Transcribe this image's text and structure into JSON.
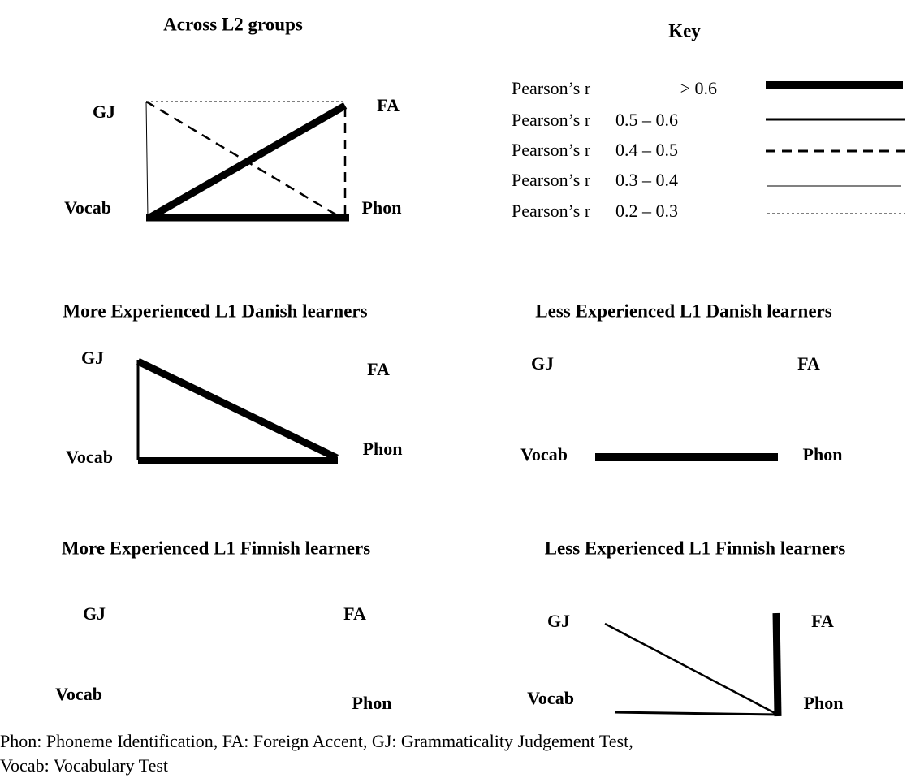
{
  "key": {
    "title": "Key",
    "entries": [
      {
        "label": "Pearson’s r",
        "range": "> 0.6"
      },
      {
        "label": "Pearson’s r",
        "range": "0.5 – 0.6"
      },
      {
        "label": "Pearson’s r",
        "range": "0.4 – 0.5"
      },
      {
        "label": "Pearson’s r",
        "range": "0.3 – 0.4"
      },
      {
        "label": "Pearson’s r",
        "range": "0.2 – 0.3"
      }
    ]
  },
  "panels": [
    {
      "title": "Across L2 groups",
      "nodes": [
        "GJ",
        "FA",
        "Vocab",
        "Phon"
      ]
    },
    {
      "title": "More Experienced L1 Danish learners",
      "nodes": [
        "GJ",
        "FA",
        "Vocab",
        "Phon"
      ]
    },
    {
      "title": "Less Experienced L1 Danish learners",
      "nodes": [
        "GJ",
        "FA",
        "Vocab",
        "Phon"
      ]
    },
    {
      "title": "More Experienced L1 Finnish learners",
      "nodes": [
        "GJ",
        "FA",
        "Vocab",
        "Phon"
      ]
    },
    {
      "title": "Less Experienced L1 Finnish learners",
      "nodes": [
        "GJ",
        "FA",
        "Vocab",
        "Phon"
      ]
    }
  ],
  "footnote": [
    "Phon: Phoneme Identification, FA: Foreign Accent, GJ: Grammaticality Judgement Test,",
    "Vocab: Vocabulary Test"
  ]
}
